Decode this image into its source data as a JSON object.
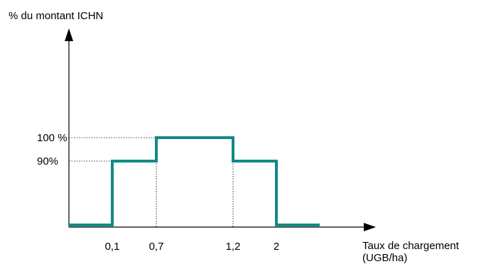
{
  "chart_data": {
    "type": "line",
    "step": true,
    "ylabel": "% du montant ICHN",
    "xlabel_lines": [
      "Taux de chargement",
      "(UGB/ha)"
    ],
    "xticks": [
      {
        "value": 0.1,
        "label": "0,1"
      },
      {
        "value": 0.7,
        "label": "0,7"
      },
      {
        "value": 1.2,
        "label": "1,2"
      },
      {
        "value": 2,
        "label": "2"
      }
    ],
    "yticks": [
      {
        "value": 90,
        "label": "90%"
      },
      {
        "value": 100,
        "label": "100 %"
      }
    ],
    "series": [
      {
        "color": "#128a86",
        "points": [
          {
            "x": 0,
            "y": 0
          },
          {
            "x": 0.1,
            "y": 0
          },
          {
            "x": 0.1,
            "y": 90
          },
          {
            "x": 0.7,
            "y": 90
          },
          {
            "x": 0.7,
            "y": 100
          },
          {
            "x": 1.2,
            "y": 100
          },
          {
            "x": 1.2,
            "y": 90
          },
          {
            "x": 2,
            "y": 90
          },
          {
            "x": 2,
            "y": 0
          },
          {
            "x": 2.6,
            "y": 0
          }
        ]
      }
    ],
    "guides": "dotted",
    "colors": {
      "axis": "#000000",
      "guide": "#000000",
      "line": "#128a86"
    }
  }
}
